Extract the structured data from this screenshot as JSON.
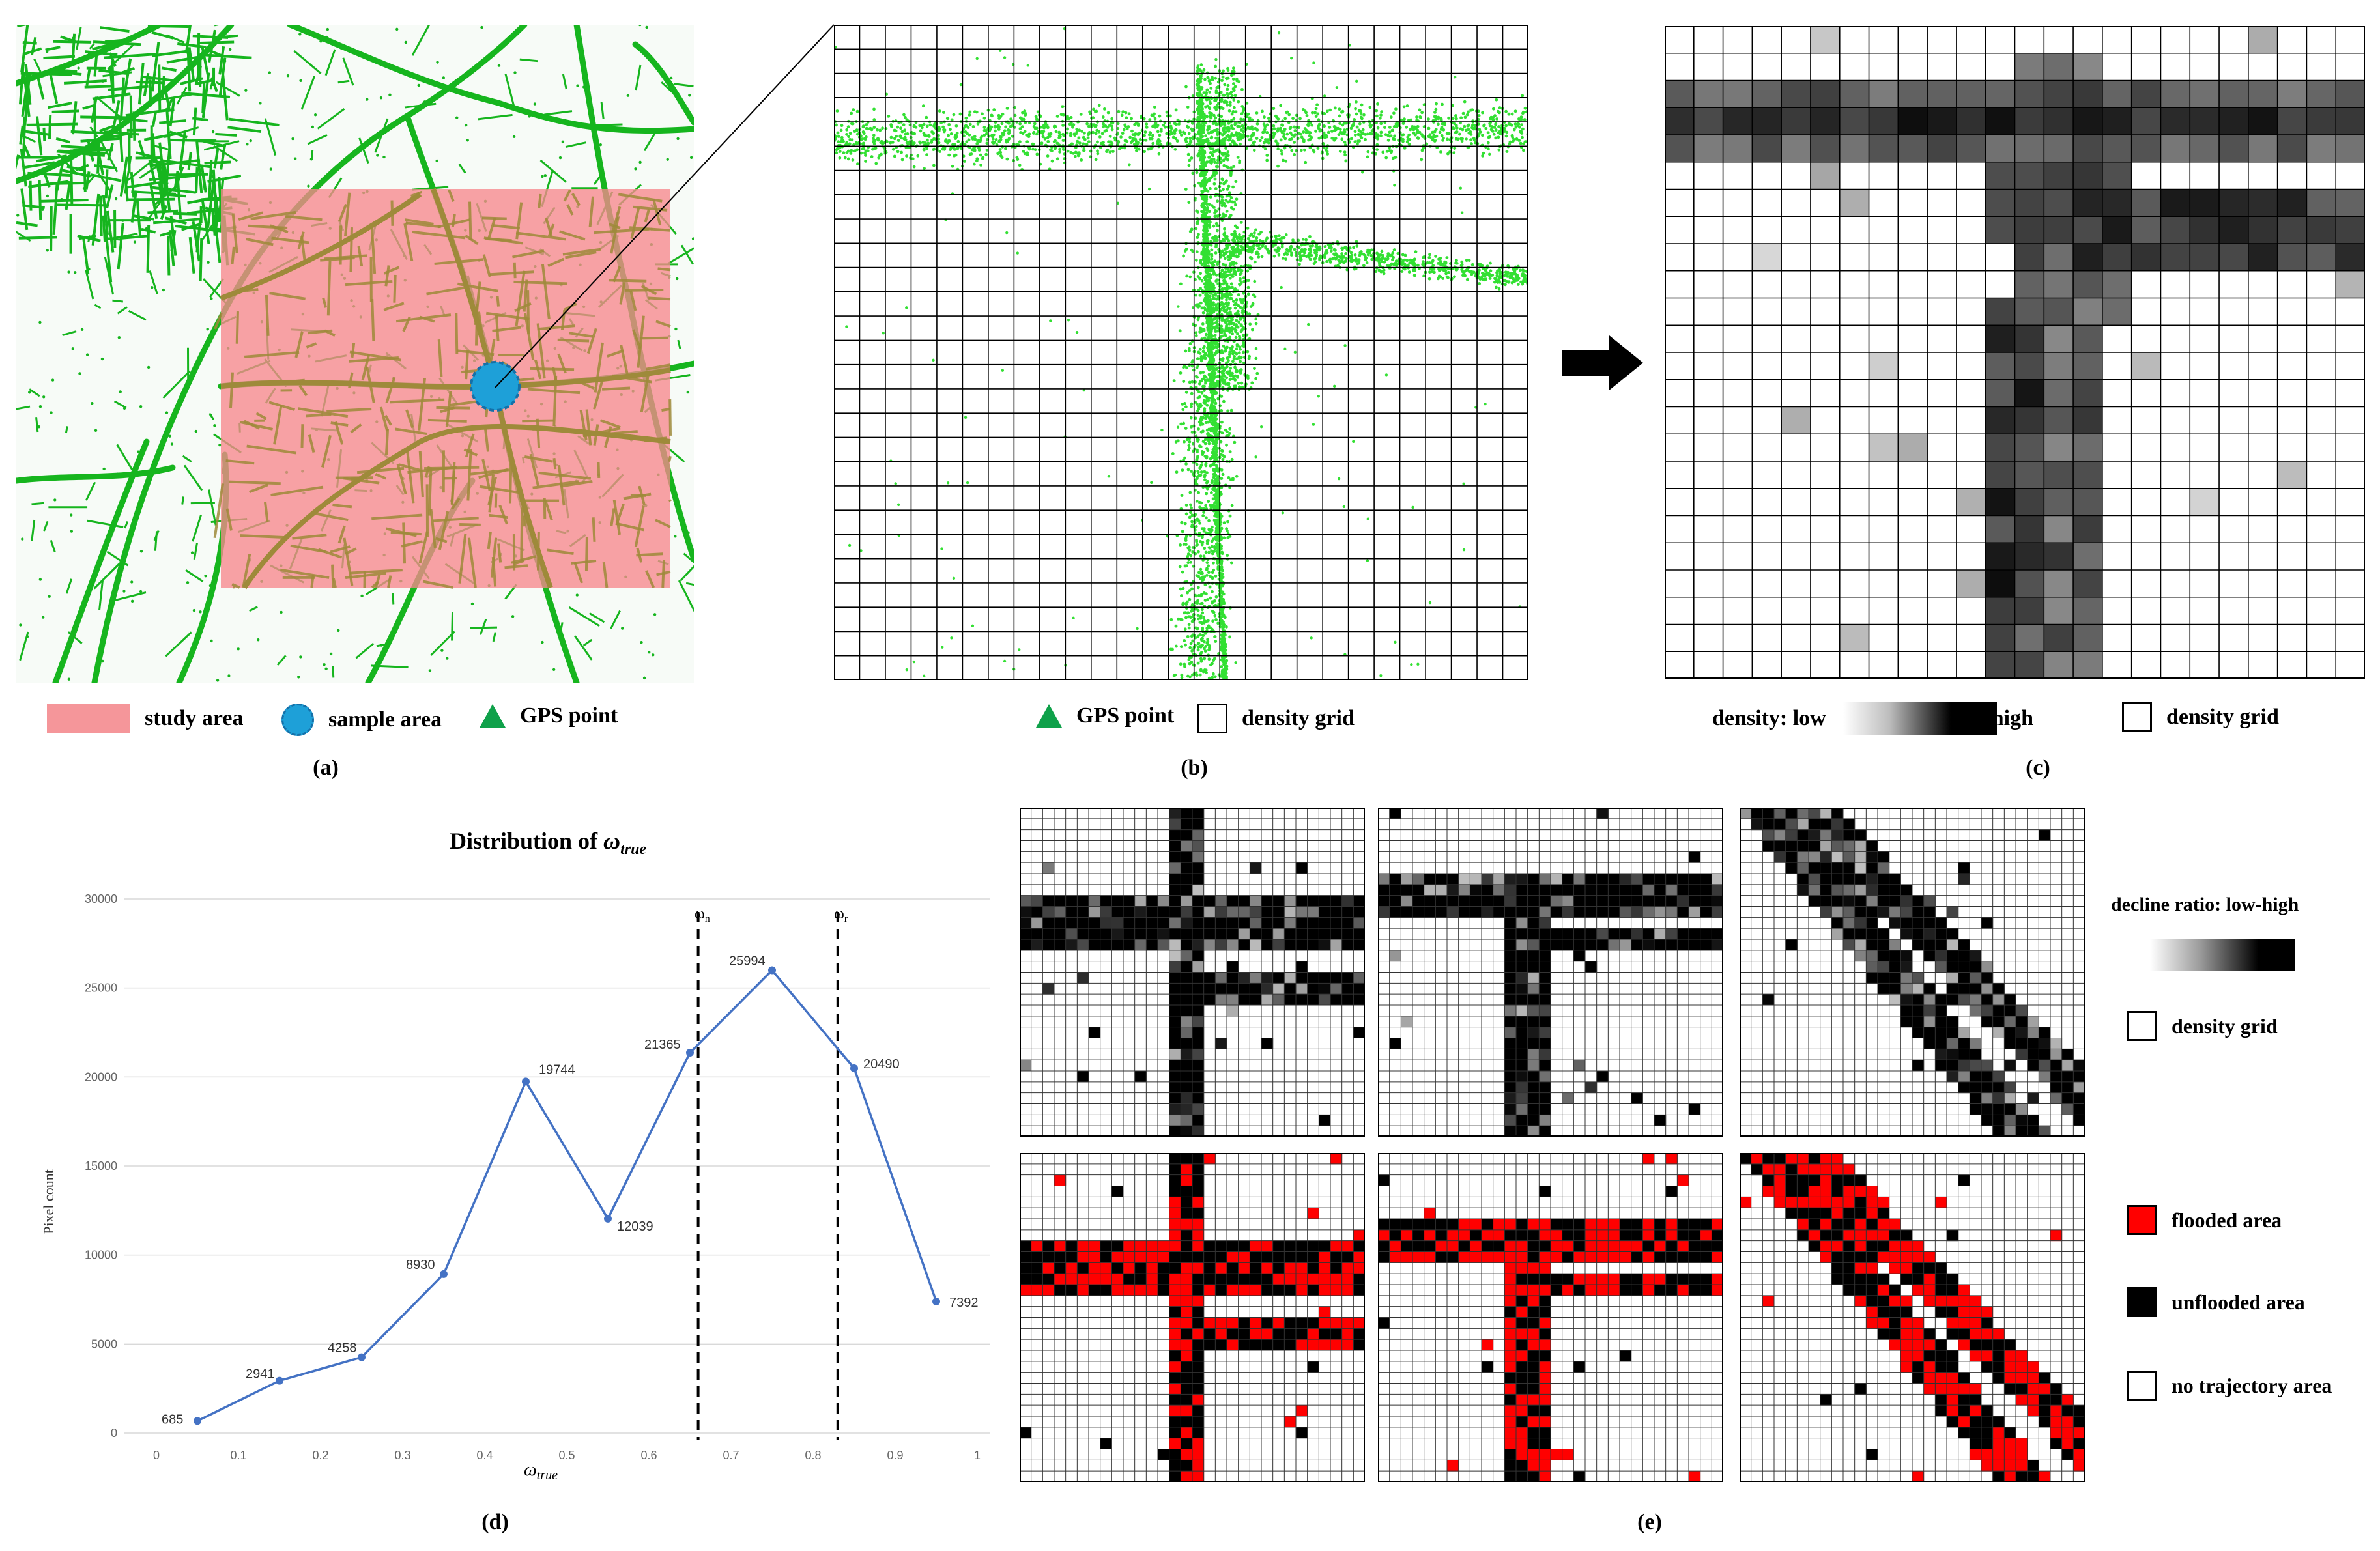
{
  "panel_a": {
    "legend": {
      "study_area": "study area",
      "sample_area": "sample area",
      "gps_point": "GPS point"
    },
    "caption": "(a)",
    "colors": {
      "road": "#16b51e",
      "study_area": "#f7888d",
      "sample_area": "#1ea0d8"
    }
  },
  "panel_b": {
    "legend": {
      "gps_point": "GPS point",
      "density_grid": "density grid"
    },
    "caption": "(b)"
  },
  "panel_c": {
    "legend": {
      "density_low": "density: low",
      "density_high": "high",
      "density_grid": "density grid"
    },
    "caption": "(c)"
  },
  "panel_d": {
    "caption": "(d)",
    "omega_n_label": "ω",
    "omega_n_sub": "n",
    "omega_r_label": "ω",
    "omega_r_sub": "r"
  },
  "panel_e": {
    "caption": "(e)",
    "legend": {
      "decline_ratio": "decline ratio: low-high",
      "density_grid": "density grid",
      "flooded": "flooded area",
      "unflooded": "unflooded area",
      "no_trajectory": "no trajectory area"
    },
    "colors": {
      "flooded": "#ff0000",
      "unflooded": "#000000",
      "no_trajectory": "#ffffff"
    }
  },
  "chart_data": {
    "type": "line",
    "title_prefix": "Distribution of ",
    "title_symbol": "ω",
    "title_sub": "true",
    "xlabel_symbol": "ω",
    "xlabel_sub": "true",
    "ylabel": "Pixel count",
    "x": [
      0.05,
      0.15,
      0.25,
      0.35,
      0.45,
      0.55,
      0.65,
      0.75,
      0.85,
      0.95
    ],
    "values": [
      685,
      2941,
      4258,
      8930,
      19744,
      12039,
      21365,
      25994,
      20490,
      7392
    ],
    "value_labels": [
      "685",
      "2941",
      "4258",
      "8930",
      "19744",
      "12039",
      "21365",
      "25994",
      "20490",
      "7392"
    ],
    "x_ticks": [
      "0",
      "0.1",
      "0.2",
      "0.3",
      "0.4",
      "0.5",
      "0.6",
      "0.7",
      "0.8",
      "0.9",
      "1"
    ],
    "y_ticks": [
      "0",
      "5000",
      "10000",
      "15000",
      "20000",
      "25000",
      "30000"
    ],
    "xlim": [
      0,
      1
    ],
    "ylim": [
      0,
      30000
    ],
    "vlines": [
      0.66,
      0.83
    ],
    "line_color": "#4472c4",
    "grid": true
  }
}
